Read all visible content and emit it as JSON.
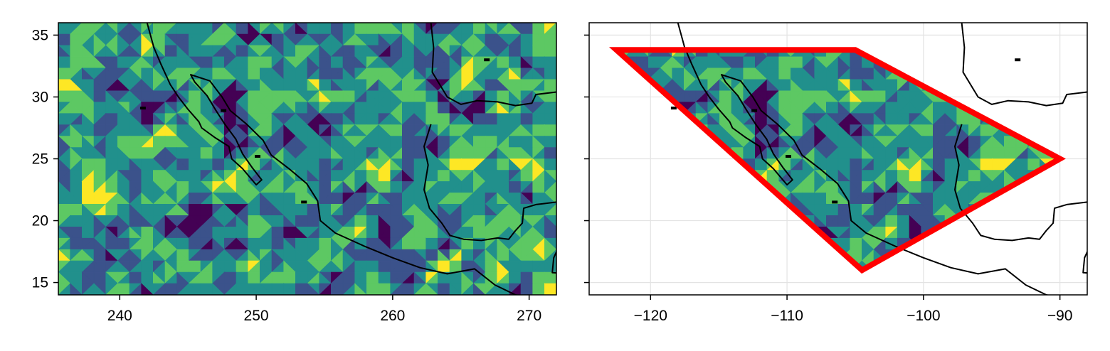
{
  "chart_data": [
    {
      "type": "heatmap",
      "title": "",
      "xlabel": "",
      "ylabel": "",
      "xlim": [
        235.5,
        272
      ],
      "ylim": [
        14,
        36
      ],
      "xticks": [
        240,
        250,
        260,
        270
      ],
      "xtick_labels": [
        "240",
        "250",
        "260",
        "270"
      ],
      "yticks": [
        15,
        20,
        25,
        30,
        35
      ],
      "ytick_labels": [
        "15",
        "20",
        "25",
        "30",
        "35"
      ],
      "grid": false,
      "fill": "random filled contour field, viridis colormap",
      "coastline": "Mexico, Baja California, Gulf of Mexico"
    },
    {
      "type": "heatmap",
      "title": "",
      "xlabel": "",
      "ylabel": "",
      "xlim": [
        -124.5,
        -88
      ],
      "ylim": [
        14,
        36
      ],
      "xticks": [
        -120,
        -110,
        -100,
        -90
      ],
      "xtick_labels": [
        "−120",
        "−110",
        "−100",
        "−90"
      ],
      "yticks": [
        15,
        20,
        25,
        30,
        35
      ],
      "ytick_labels": [
        "",
        "",
        "",
        "",
        ""
      ],
      "grid": true,
      "fill": "same field masked to polygon interior",
      "polygon": {
        "color": "#ff0000",
        "vertices": [
          [
            -122.5,
            33.8
          ],
          [
            -105,
            33.8
          ],
          [
            -90,
            25
          ],
          [
            -104.5,
            16
          ],
          [
            -122.5,
            33.8
          ]
        ]
      },
      "coastline": "Mexico, Baja California, Gulf of Mexico"
    }
  ],
  "colors": {
    "colormap": [
      "#440154",
      "#3b528b",
      "#21908c",
      "#5dc863",
      "#fde725"
    ],
    "coastline": "#000000",
    "polygon": "#ff0000",
    "grid": "#e3e3e3"
  }
}
